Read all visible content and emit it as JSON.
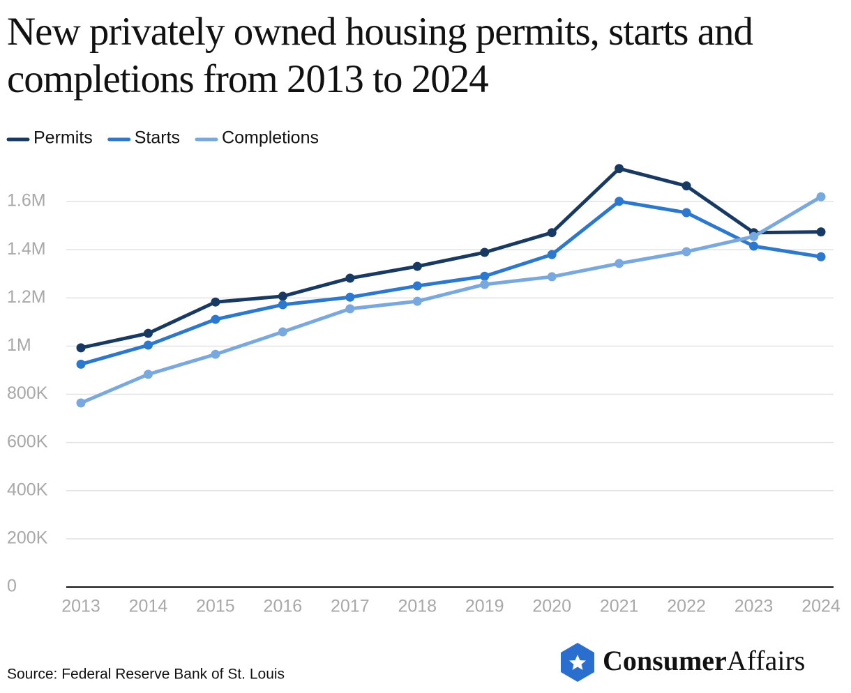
{
  "chart_data": {
    "type": "line",
    "title": "New privately owned housing permits, starts and completions from 2013 to 2024",
    "categories": [
      "2013",
      "2014",
      "2015",
      "2016",
      "2017",
      "2018",
      "2019",
      "2020",
      "2021",
      "2022",
      "2023",
      "2024"
    ],
    "series": [
      {
        "name": "Permits",
        "color": "#173a64",
        "values": [
          993000,
          1053000,
          1183000,
          1207000,
          1282000,
          1331000,
          1389000,
          1471000,
          1737000,
          1665000,
          1471000,
          1474000
        ]
      },
      {
        "name": "Starts",
        "color": "#2a78d0",
        "values": [
          925000,
          1004000,
          1111000,
          1172000,
          1203000,
          1250000,
          1290000,
          1380000,
          1601000,
          1554000,
          1415000,
          1371000
        ]
      },
      {
        "name": "Completions",
        "color": "#78a8e0",
        "values": [
          764000,
          883000,
          966000,
          1059000,
          1155000,
          1186000,
          1256000,
          1288000,
          1343000,
          1392000,
          1455000,
          1620000
        ]
      }
    ],
    "ylim": [
      0,
      1800000
    ],
    "yticks": [
      0,
      {
        "value": 200000,
        "label": "200K"
      },
      {
        "value": 400000,
        "label": "400K"
      },
      {
        "value": 600000,
        "label": "600K"
      },
      {
        "value": 800000,
        "label": "800K"
      },
      {
        "value": 1000000,
        "label": "1M"
      },
      {
        "value": 1200000,
        "label": "1.2M"
      },
      {
        "value": 1400000,
        "label": "1.4M"
      },
      {
        "value": 1600000,
        "label": "1.6M"
      }
    ],
    "grid": true,
    "legend": "top-left",
    "source": "Source: Federal Reserve Bank of St. Louis",
    "brand": {
      "bold": "Consumer",
      "regular": "Affairs"
    }
  }
}
